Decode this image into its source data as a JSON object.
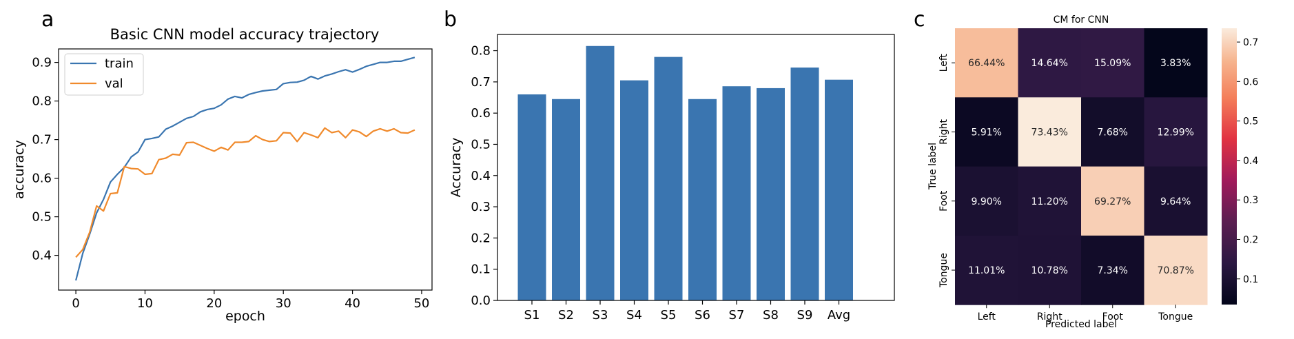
{
  "panels": {
    "a": "a",
    "b": "b",
    "c": "c"
  },
  "chart_data": [
    {
      "type": "line",
      "title": "Basic CNN model accuracy trajectory",
      "xlabel": "epoch",
      "ylabel": "accuracy",
      "xlim": [
        -2.5,
        51.5
      ],
      "ylim": [
        0.31,
        0.935
      ],
      "xticks": [
        0,
        10,
        20,
        30,
        40,
        50
      ],
      "yticks": [
        0.4,
        0.5,
        0.6,
        0.7,
        0.8,
        0.9
      ],
      "legend": "top-left",
      "x": [
        0,
        1,
        2,
        3,
        4,
        5,
        6,
        7,
        8,
        9,
        10,
        11,
        12,
        13,
        14,
        15,
        16,
        17,
        18,
        19,
        20,
        21,
        22,
        23,
        24,
        25,
        26,
        27,
        28,
        29,
        30,
        31,
        32,
        33,
        34,
        35,
        36,
        37,
        38,
        39,
        40,
        41,
        42,
        43,
        44,
        45,
        46,
        47,
        48,
        49
      ],
      "series": [
        {
          "name": "train",
          "color": "#3a75b0",
          "values": [
            0.335,
            0.405,
            0.455,
            0.51,
            0.545,
            0.59,
            0.61,
            0.628,
            0.655,
            0.668,
            0.7,
            0.703,
            0.707,
            0.727,
            0.735,
            0.745,
            0.755,
            0.76,
            0.772,
            0.778,
            0.781,
            0.79,
            0.805,
            0.812,
            0.808,
            0.817,
            0.822,
            0.826,
            0.828,
            0.83,
            0.845,
            0.848,
            0.849,
            0.854,
            0.864,
            0.857,
            0.865,
            0.87,
            0.876,
            0.881,
            0.875,
            0.882,
            0.89,
            0.895,
            0.9,
            0.9,
            0.903,
            0.903,
            0.908,
            0.913
          ]
        },
        {
          "name": "val",
          "color": "#f08a2c",
          "values": [
            0.395,
            0.415,
            0.46,
            0.528,
            0.515,
            0.56,
            0.562,
            0.63,
            0.625,
            0.624,
            0.61,
            0.612,
            0.648,
            0.652,
            0.662,
            0.66,
            0.692,
            0.693,
            0.685,
            0.677,
            0.67,
            0.68,
            0.673,
            0.693,
            0.693,
            0.695,
            0.71,
            0.7,
            0.695,
            0.697,
            0.718,
            0.717,
            0.695,
            0.718,
            0.712,
            0.705,
            0.73,
            0.718,
            0.722,
            0.705,
            0.725,
            0.72,
            0.708,
            0.722,
            0.728,
            0.722,
            0.728,
            0.718,
            0.717,
            0.725
          ]
        }
      ]
    },
    {
      "type": "bar",
      "ylabel": "Accuracy",
      "ylim": [
        0,
        0.852
      ],
      "yticks": [
        0.0,
        0.1,
        0.2,
        0.3,
        0.4,
        0.5,
        0.6,
        0.7,
        0.8
      ],
      "categories": [
        "S1",
        "S2",
        "S3",
        "S4",
        "S5",
        "S6",
        "S7",
        "S8",
        "S9",
        "Avg"
      ],
      "values": [
        0.66,
        0.645,
        0.815,
        0.705,
        0.78,
        0.645,
        0.686,
        0.68,
        0.746,
        0.707
      ],
      "color": "#3a75b0"
    },
    {
      "type": "heatmap",
      "title": "CM for CNN",
      "xlabel": "Predicted label",
      "ylabel": "True label",
      "x_categories": [
        "Left",
        "Right",
        "Foot",
        "Tongue"
      ],
      "y_categories": [
        "Left",
        "Right",
        "Foot",
        "Tongue"
      ],
      "values": [
        [
          0.6644,
          0.1464,
          0.1509,
          0.0383
        ],
        [
          0.0591,
          0.7343,
          0.0768,
          0.1299
        ],
        [
          0.099,
          0.112,
          0.6927,
          0.0964
        ],
        [
          0.1101,
          0.1078,
          0.0734,
          0.7087
        ]
      ],
      "labels": [
        [
          "66.44%",
          "14.64%",
          "15.09%",
          "3.83%"
        ],
        [
          "5.91%",
          "73.43%",
          "7.68%",
          "12.99%"
        ],
        [
          "9.90%",
          "11.20%",
          "69.27%",
          "9.64%"
        ],
        [
          "11.01%",
          "10.78%",
          "7.34%",
          "70.87%"
        ]
      ],
      "colorbar_range": [
        0.035,
        0.735
      ],
      "colorbar_ticks": [
        0.1,
        0.2,
        0.3,
        0.4,
        0.5,
        0.6,
        0.7
      ]
    }
  ]
}
